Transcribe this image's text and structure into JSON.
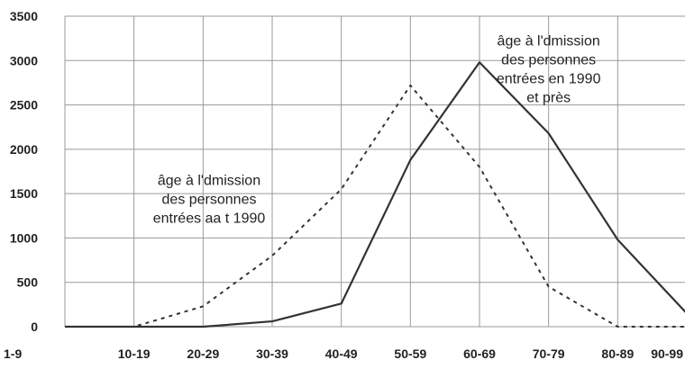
{
  "chart_data": {
    "type": "line",
    "categories": [
      "1-9",
      "10-19",
      "20-29",
      "30-39",
      "40-49",
      "50-59",
      "60-69",
      "70-79",
      "80-89",
      "90-99"
    ],
    "ylim": [
      0,
      3500
    ],
    "yticks": [
      0,
      500,
      1000,
      1500,
      2000,
      2500,
      3000,
      3500
    ],
    "grid": true,
    "series": [
      {
        "style": "dashed",
        "values": [
          0,
          0,
          230,
          800,
          1550,
          2720,
          1800,
          450,
          0,
          0
        ]
      },
      {
        "style": "solid",
        "values": [
          0,
          0,
          0,
          60,
          260,
          1880,
          2980,
          2180,
          980,
          150
        ]
      }
    ],
    "annotations": [
      {
        "lines": [
          "âge à l'dmission",
          "des personnes",
          "entrées  aa t 1990"
        ],
        "near_category": "30-39",
        "near_value": 1600
      },
      {
        "lines": [
          "âge à l'dmission",
          "des personnes",
          "entrées en 1990",
          "et près"
        ],
        "near_category": "70-79",
        "near_value": 3170
      }
    ]
  }
}
